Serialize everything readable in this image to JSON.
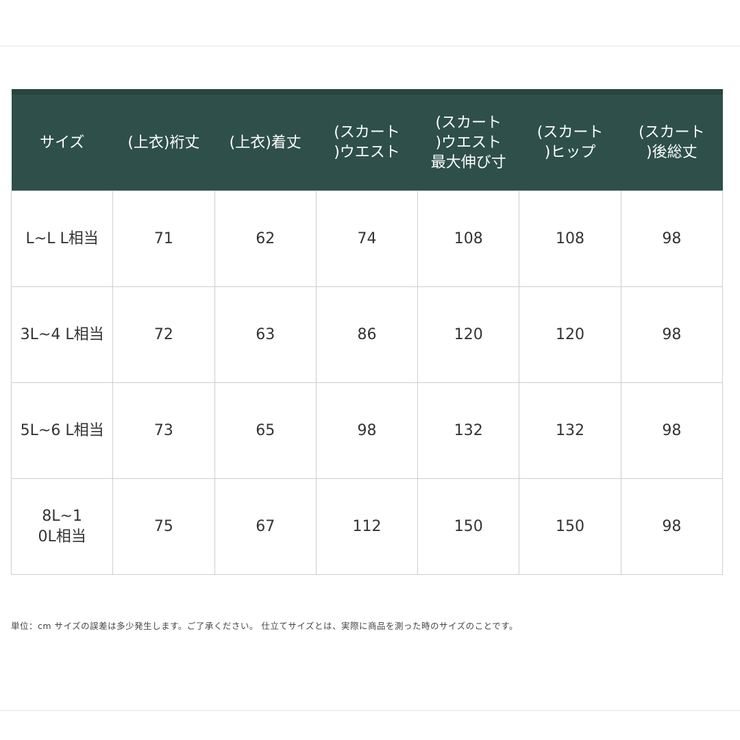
{
  "table": {
    "header_color": "#2e4f4a",
    "columns": [
      "サイズ",
      "(上衣)裄丈",
      "(上衣)着丈",
      "(スカート\n)ウエスト",
      "(スカート\n)ウエスト\n最大伸び寸",
      "(スカート\n)ヒップ",
      "(スカート\n)後総丈"
    ],
    "rows": [
      [
        "L~L L相当",
        "71",
        "62",
        "74",
        "108",
        "108",
        "98"
      ],
      [
        "3L~4 L相当",
        "72",
        "63",
        "86",
        "120",
        "120",
        "98"
      ],
      [
        "5L~6 L相当",
        "73",
        "65",
        "98",
        "132",
        "132",
        "98"
      ],
      [
        "8L~1\n0L相当",
        "75",
        "67",
        "112",
        "150",
        "150",
        "98"
      ]
    ]
  },
  "note": "単位：cm サイズの誤差は多少発生します。ご了承ください。 仕立てサイズとは、実際に商品を測った時のサイズのことです。"
}
